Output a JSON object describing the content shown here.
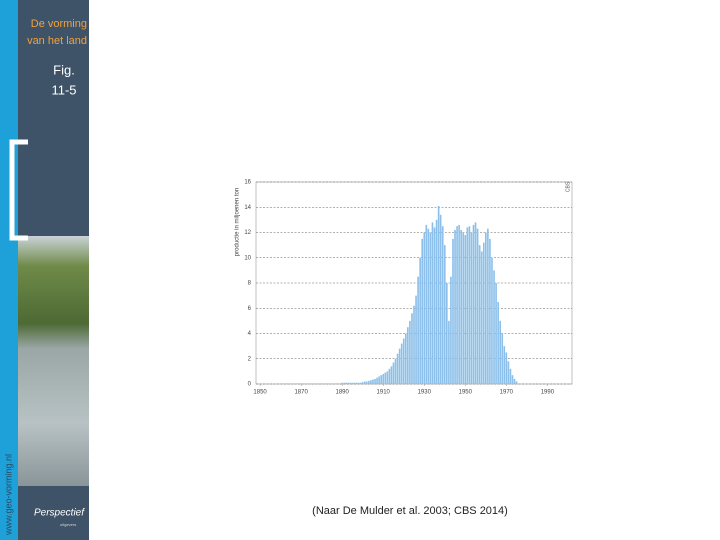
{
  "sidebar": {
    "title_line1": "De vorming",
    "title_line2": "van het land",
    "fig": "Fig.",
    "fig_number": "11-5",
    "website": "www.geo-vorming.nl",
    "logo": "Perspectief",
    "logo_sub": "uitgevers"
  },
  "caption": "(Naar  De Mulder et al. 2003; CBS 2014)",
  "chart_data": {
    "type": "bar",
    "y_label": "productie in miljoenen ton",
    "source": "CBS",
    "color": "#8cc0ea",
    "grid": true,
    "xlim": [
      1848,
      2002
    ],
    "xticks": [
      1850,
      1870,
      1890,
      1910,
      1930,
      1950,
      1970,
      1990
    ],
    "ylim": [
      0,
      16
    ],
    "yticks": [
      0,
      2,
      4,
      6,
      8,
      10,
      12,
      14,
      16
    ],
    "x": [
      1860,
      1861,
      1862,
      1863,
      1864,
      1865,
      1866,
      1867,
      1868,
      1869,
      1870,
      1871,
      1872,
      1873,
      1874,
      1875,
      1876,
      1877,
      1878,
      1879,
      1880,
      1881,
      1882,
      1883,
      1884,
      1885,
      1886,
      1887,
      1888,
      1889,
      1890,
      1891,
      1892,
      1893,
      1894,
      1895,
      1896,
      1897,
      1898,
      1899,
      1900,
      1901,
      1902,
      1903,
      1904,
      1905,
      1906,
      1907,
      1908,
      1909,
      1910,
      1911,
      1912,
      1913,
      1914,
      1915,
      1916,
      1917,
      1918,
      1919,
      1920,
      1921,
      1922,
      1923,
      1924,
      1925,
      1926,
      1927,
      1928,
      1929,
      1930,
      1931,
      1932,
      1933,
      1934,
      1935,
      1936,
      1937,
      1938,
      1939,
      1940,
      1941,
      1942,
      1943,
      1944,
      1945,
      1946,
      1947,
      1948,
      1949,
      1950,
      1951,
      1952,
      1953,
      1954,
      1955,
      1956,
      1957,
      1958,
      1959,
      1960,
      1961,
      1962,
      1963,
      1964,
      1965,
      1966,
      1967,
      1968,
      1969,
      1970,
      1971,
      1972,
      1973,
      1974,
      1975
    ],
    "values": [
      0.05,
      0.05,
      0.05,
      0.05,
      0.05,
      0.05,
      0.05,
      0.05,
      0.05,
      0.05,
      0.05,
      0.05,
      0.05,
      0.05,
      0.05,
      0.05,
      0.05,
      0.05,
      0.05,
      0.05,
      0.05,
      0.05,
      0.05,
      0.05,
      0.05,
      0.05,
      0.05,
      0.05,
      0.05,
      0.05,
      0.1,
      0.1,
      0.1,
      0.1,
      0.1,
      0.1,
      0.1,
      0.1,
      0.1,
      0.1,
      0.15,
      0.2,
      0.2,
      0.25,
      0.3,
      0.35,
      0.4,
      0.5,
      0.6,
      0.7,
      0.8,
      0.9,
      1.0,
      1.2,
      1.4,
      1.7,
      2.0,
      2.4,
      2.8,
      3.2,
      3.6,
      4.0,
      4.5,
      5.0,
      5.6,
      6.2,
      7.0,
      8.5,
      10.0,
      11.5,
      12.0,
      12.6,
      12.3,
      12.0,
      12.8,
      12.4,
      13.0,
      14.1,
      13.4,
      12.5,
      11.0,
      8.0,
      5.0,
      8.5,
      11.5,
      12.2,
      12.5,
      12.6,
      12.2,
      12.0,
      11.8,
      12.4,
      12.5,
      12.0,
      12.6,
      12.8,
      12.3,
      11.0,
      10.5,
      11.2,
      12.0,
      12.3,
      11.5,
      10.0,
      9.0,
      8.0,
      6.5,
      5.0,
      4.0,
      3.0,
      2.5,
      1.8,
      1.2,
      0.7,
      0.4,
      0.2
    ]
  }
}
